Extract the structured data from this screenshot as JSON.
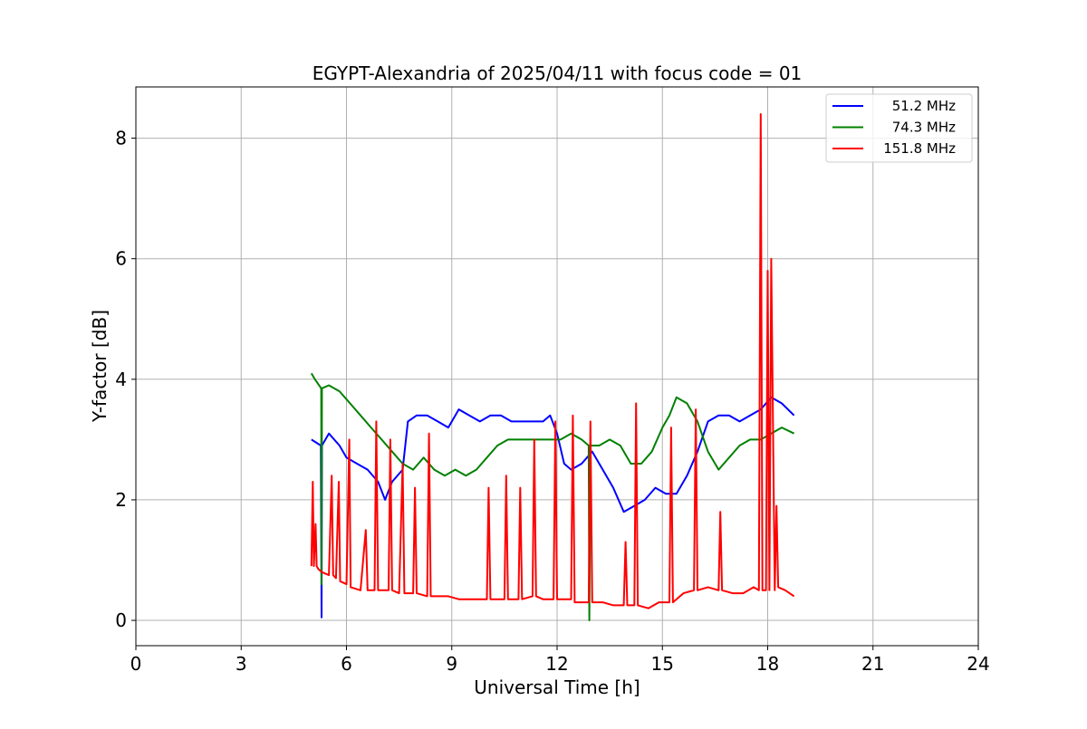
{
  "chart_data": {
    "type": "line",
    "title": "EGYPT-Alexandria of 2025/04/11 with focus code = 01",
    "xlabel": "Universal Time [h]",
    "ylabel": "Y-factor [dB]",
    "xlim": [
      0,
      24
    ],
    "ylim": [
      -0.42,
      8.85
    ],
    "xticks": [
      0,
      3,
      6,
      9,
      12,
      15,
      18,
      21,
      24
    ],
    "yticks": [
      0,
      2,
      4,
      6,
      8
    ],
    "grid": true,
    "legend_position": "top-right",
    "series": [
      {
        "name": "51.2 MHz",
        "color": "#0000ff",
        "x": [
          5.0,
          5.27,
          5.29,
          5.3,
          5.5,
          5.8,
          6.0,
          6.3,
          6.6,
          6.9,
          7.1,
          7.3,
          7.6,
          7.75,
          8.0,
          8.3,
          8.6,
          8.9,
          9.2,
          9.5,
          9.8,
          10.1,
          10.4,
          10.7,
          11.0,
          11.3,
          11.6,
          11.8,
          12.0,
          12.2,
          12.4,
          12.7,
          13.0,
          13.3,
          13.6,
          13.9,
          14.2,
          14.5,
          14.8,
          15.1,
          15.4,
          15.7,
          16.0,
          16.3,
          16.6,
          16.9,
          17.2,
          17.5,
          17.8,
          18.1,
          18.4,
          18.75
        ],
        "y": [
          3.0,
          2.9,
          0.05,
          2.9,
          3.1,
          2.9,
          2.7,
          2.6,
          2.5,
          2.3,
          2.0,
          2.3,
          2.5,
          3.3,
          3.4,
          3.4,
          3.3,
          3.2,
          3.5,
          3.4,
          3.3,
          3.4,
          3.4,
          3.3,
          3.3,
          3.3,
          3.3,
          3.4,
          3.1,
          2.6,
          2.5,
          2.6,
          2.8,
          2.5,
          2.2,
          1.8,
          1.9,
          2.0,
          2.2,
          2.1,
          2.1,
          2.4,
          2.8,
          3.3,
          3.4,
          3.4,
          3.3,
          3.4,
          3.5,
          3.7,
          3.6,
          3.4
        ]
      },
      {
        "name": "74.3 MHz",
        "color": "#008000",
        "x": [
          5.0,
          5.1,
          5.28,
          5.29,
          5.3,
          5.5,
          5.8,
          6.1,
          6.4,
          6.7,
          7.0,
          7.3,
          7.6,
          7.9,
          8.2,
          8.5,
          8.8,
          9.1,
          9.4,
          9.7,
          10.0,
          10.3,
          10.6,
          10.9,
          11.2,
          11.5,
          11.8,
          12.1,
          12.4,
          12.7,
          12.9,
          12.92,
          12.95,
          13.2,
          13.5,
          13.8,
          14.1,
          14.4,
          14.7,
          15.0,
          15.2,
          15.4,
          15.7,
          16.0,
          16.3,
          16.6,
          16.9,
          17.2,
          17.5,
          17.8,
          18.1,
          18.4,
          18.75
        ],
        "y": [
          4.1,
          4.0,
          3.85,
          0.6,
          3.85,
          3.9,
          3.8,
          3.6,
          3.4,
          3.2,
          3.0,
          2.8,
          2.6,
          2.5,
          2.7,
          2.5,
          2.4,
          2.5,
          2.4,
          2.5,
          2.7,
          2.9,
          3.0,
          3.0,
          3.0,
          3.0,
          3.0,
          3.0,
          3.1,
          3.0,
          2.9,
          0.0,
          2.9,
          2.9,
          3.0,
          2.9,
          2.6,
          2.6,
          2.8,
          3.2,
          3.4,
          3.7,
          3.6,
          3.3,
          2.8,
          2.5,
          2.7,
          2.9,
          3.0,
          3.0,
          3.1,
          3.2,
          3.1
        ]
      },
      {
        "name": "151.8 MHz",
        "color": "#ff0000",
        "x": [
          5.0,
          5.04,
          5.07,
          5.12,
          5.15,
          5.2,
          5.3,
          5.5,
          5.58,
          5.62,
          5.7,
          5.78,
          5.82,
          6.0,
          6.08,
          6.12,
          6.4,
          6.55,
          6.6,
          6.8,
          6.85,
          6.9,
          7.2,
          7.25,
          7.3,
          7.5,
          7.6,
          7.65,
          7.7,
          7.9,
          7.95,
          8.0,
          8.3,
          8.35,
          8.4,
          8.6,
          8.9,
          9.2,
          9.5,
          9.8,
          10.0,
          10.05,
          10.1,
          10.3,
          10.5,
          10.55,
          10.6,
          10.9,
          10.95,
          11.0,
          11.3,
          11.35,
          11.4,
          11.6,
          11.9,
          11.95,
          12.0,
          12.2,
          12.4,
          12.45,
          12.5,
          12.7,
          12.9,
          12.95,
          13.0,
          13.3,
          13.6,
          13.9,
          13.95,
          14.0,
          14.2,
          14.25,
          14.3,
          14.6,
          14.9,
          15.2,
          15.25,
          15.3,
          15.6,
          15.9,
          15.95,
          16.0,
          16.3,
          16.6,
          16.65,
          16.7,
          17.0,
          17.3,
          17.6,
          17.75,
          17.8,
          17.85,
          17.95,
          18.0,
          18.05,
          18.1,
          18.2,
          18.25,
          18.3,
          18.5,
          18.75
        ],
        "y": [
          0.9,
          2.3,
          0.9,
          1.6,
          0.9,
          0.85,
          0.8,
          0.75,
          2.4,
          0.75,
          0.7,
          2.3,
          0.65,
          0.6,
          3.0,
          0.55,
          0.5,
          1.5,
          0.5,
          0.5,
          3.3,
          0.5,
          0.5,
          3.0,
          0.5,
          0.45,
          2.6,
          0.45,
          0.45,
          0.45,
          2.2,
          0.45,
          0.4,
          3.1,
          0.4,
          0.4,
          0.4,
          0.35,
          0.35,
          0.35,
          0.35,
          2.2,
          0.35,
          0.35,
          0.35,
          2.4,
          0.35,
          0.35,
          2.2,
          0.35,
          0.4,
          3.0,
          0.4,
          0.35,
          0.35,
          3.3,
          0.35,
          0.35,
          0.35,
          3.4,
          0.3,
          0.3,
          0.3,
          3.3,
          0.3,
          0.3,
          0.25,
          0.25,
          1.3,
          0.25,
          0.25,
          3.6,
          0.25,
          0.2,
          0.3,
          0.3,
          3.2,
          0.3,
          0.45,
          0.5,
          3.5,
          0.5,
          0.55,
          0.5,
          1.8,
          0.5,
          0.45,
          0.45,
          0.55,
          0.5,
          8.4,
          0.5,
          0.5,
          5.8,
          0.5,
          6.0,
          0.5,
          1.9,
          0.55,
          0.5,
          0.4
        ]
      }
    ]
  }
}
